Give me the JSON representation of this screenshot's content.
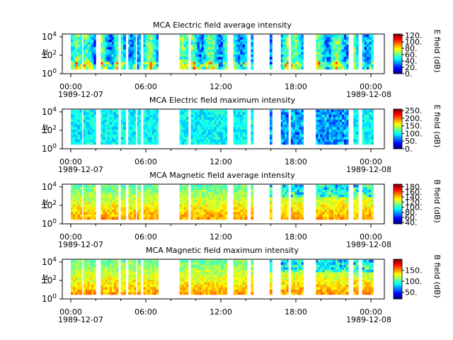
{
  "chart_data": [
    {
      "type": "heatmap",
      "title": "MCA  Electric field average intensity",
      "ylabel": "Hz",
      "ylog": true,
      "yticks": [
        "10^4",
        "10^2",
        "10^0"
      ],
      "xtick_labels": [
        "00:00",
        "06:00",
        "12:00",
        "18:00",
        "00:00"
      ],
      "xtick_hours": [
        0,
        6,
        12,
        18,
        24
      ],
      "date_labels": [
        "1989-12-07",
        "1989-12-08"
      ],
      "colorbar_label": "E field (dB)",
      "colorbar_ticks": [
        "120.",
        "100.",
        "80.",
        "60.",
        "40.",
        "20.",
        "0."
      ],
      "colorbar_range": [
        0,
        125
      ],
      "colormap": "jet"
    },
    {
      "type": "heatmap",
      "title": "MCA  Electric field maximum intensity",
      "ylabel": "Hz",
      "ylog": true,
      "yticks": [
        "10^4",
        "10^2",
        "10^0"
      ],
      "xtick_labels": [
        "00:00",
        "06:00",
        "12:00",
        "18:00",
        "00:00"
      ],
      "xtick_hours": [
        0,
        6,
        12,
        18,
        24
      ],
      "date_labels": [
        "1989-12-07",
        "1989-12-08"
      ],
      "colorbar_label": "E field (dB)",
      "colorbar_ticks": [
        "250.",
        "200.",
        "150.",
        "100.",
        "50.",
        "0."
      ],
      "colorbar_range": [
        0,
        260
      ],
      "colormap": "jet"
    },
    {
      "type": "heatmap",
      "title": "MCA  Magnetic field average intensity",
      "ylabel": "Hz",
      "ylog": true,
      "yticks": [
        "10^4",
        "10^2",
        "10^0"
      ],
      "xtick_labels": [
        "00:00",
        "06:00",
        "12:00",
        "18:00",
        "00:00"
      ],
      "xtick_hours": [
        0,
        6,
        12,
        18,
        24
      ],
      "date_labels": [
        "1989-12-07",
        "1989-12-08"
      ],
      "colorbar_label": "B field (dB)",
      "colorbar_ticks": [
        "180.",
        "160.",
        "140.",
        "120.",
        "100.",
        "80.",
        "60.",
        "40."
      ],
      "colorbar_range": [
        35,
        190
      ],
      "colormap": "jet"
    },
    {
      "type": "heatmap",
      "title": "MCA  Magnetic field maximum intensity",
      "ylabel": "Hz",
      "ylog": true,
      "yticks": [
        "10^4",
        "10^2",
        "10^0"
      ],
      "xtick_labels": [
        "00:00",
        "06:00",
        "12:00",
        "18:00",
        "00:00"
      ],
      "xtick_hours": [
        0,
        6,
        12,
        18,
        24
      ],
      "date_labels": [
        "1989-12-07",
        "1989-12-08"
      ],
      "colorbar_label": "B field (dB)",
      "colorbar_ticks": [
        "150.",
        "100.",
        "50."
      ],
      "colorbar_range": [
        20,
        200
      ],
      "colormap": "jet"
    }
  ]
}
